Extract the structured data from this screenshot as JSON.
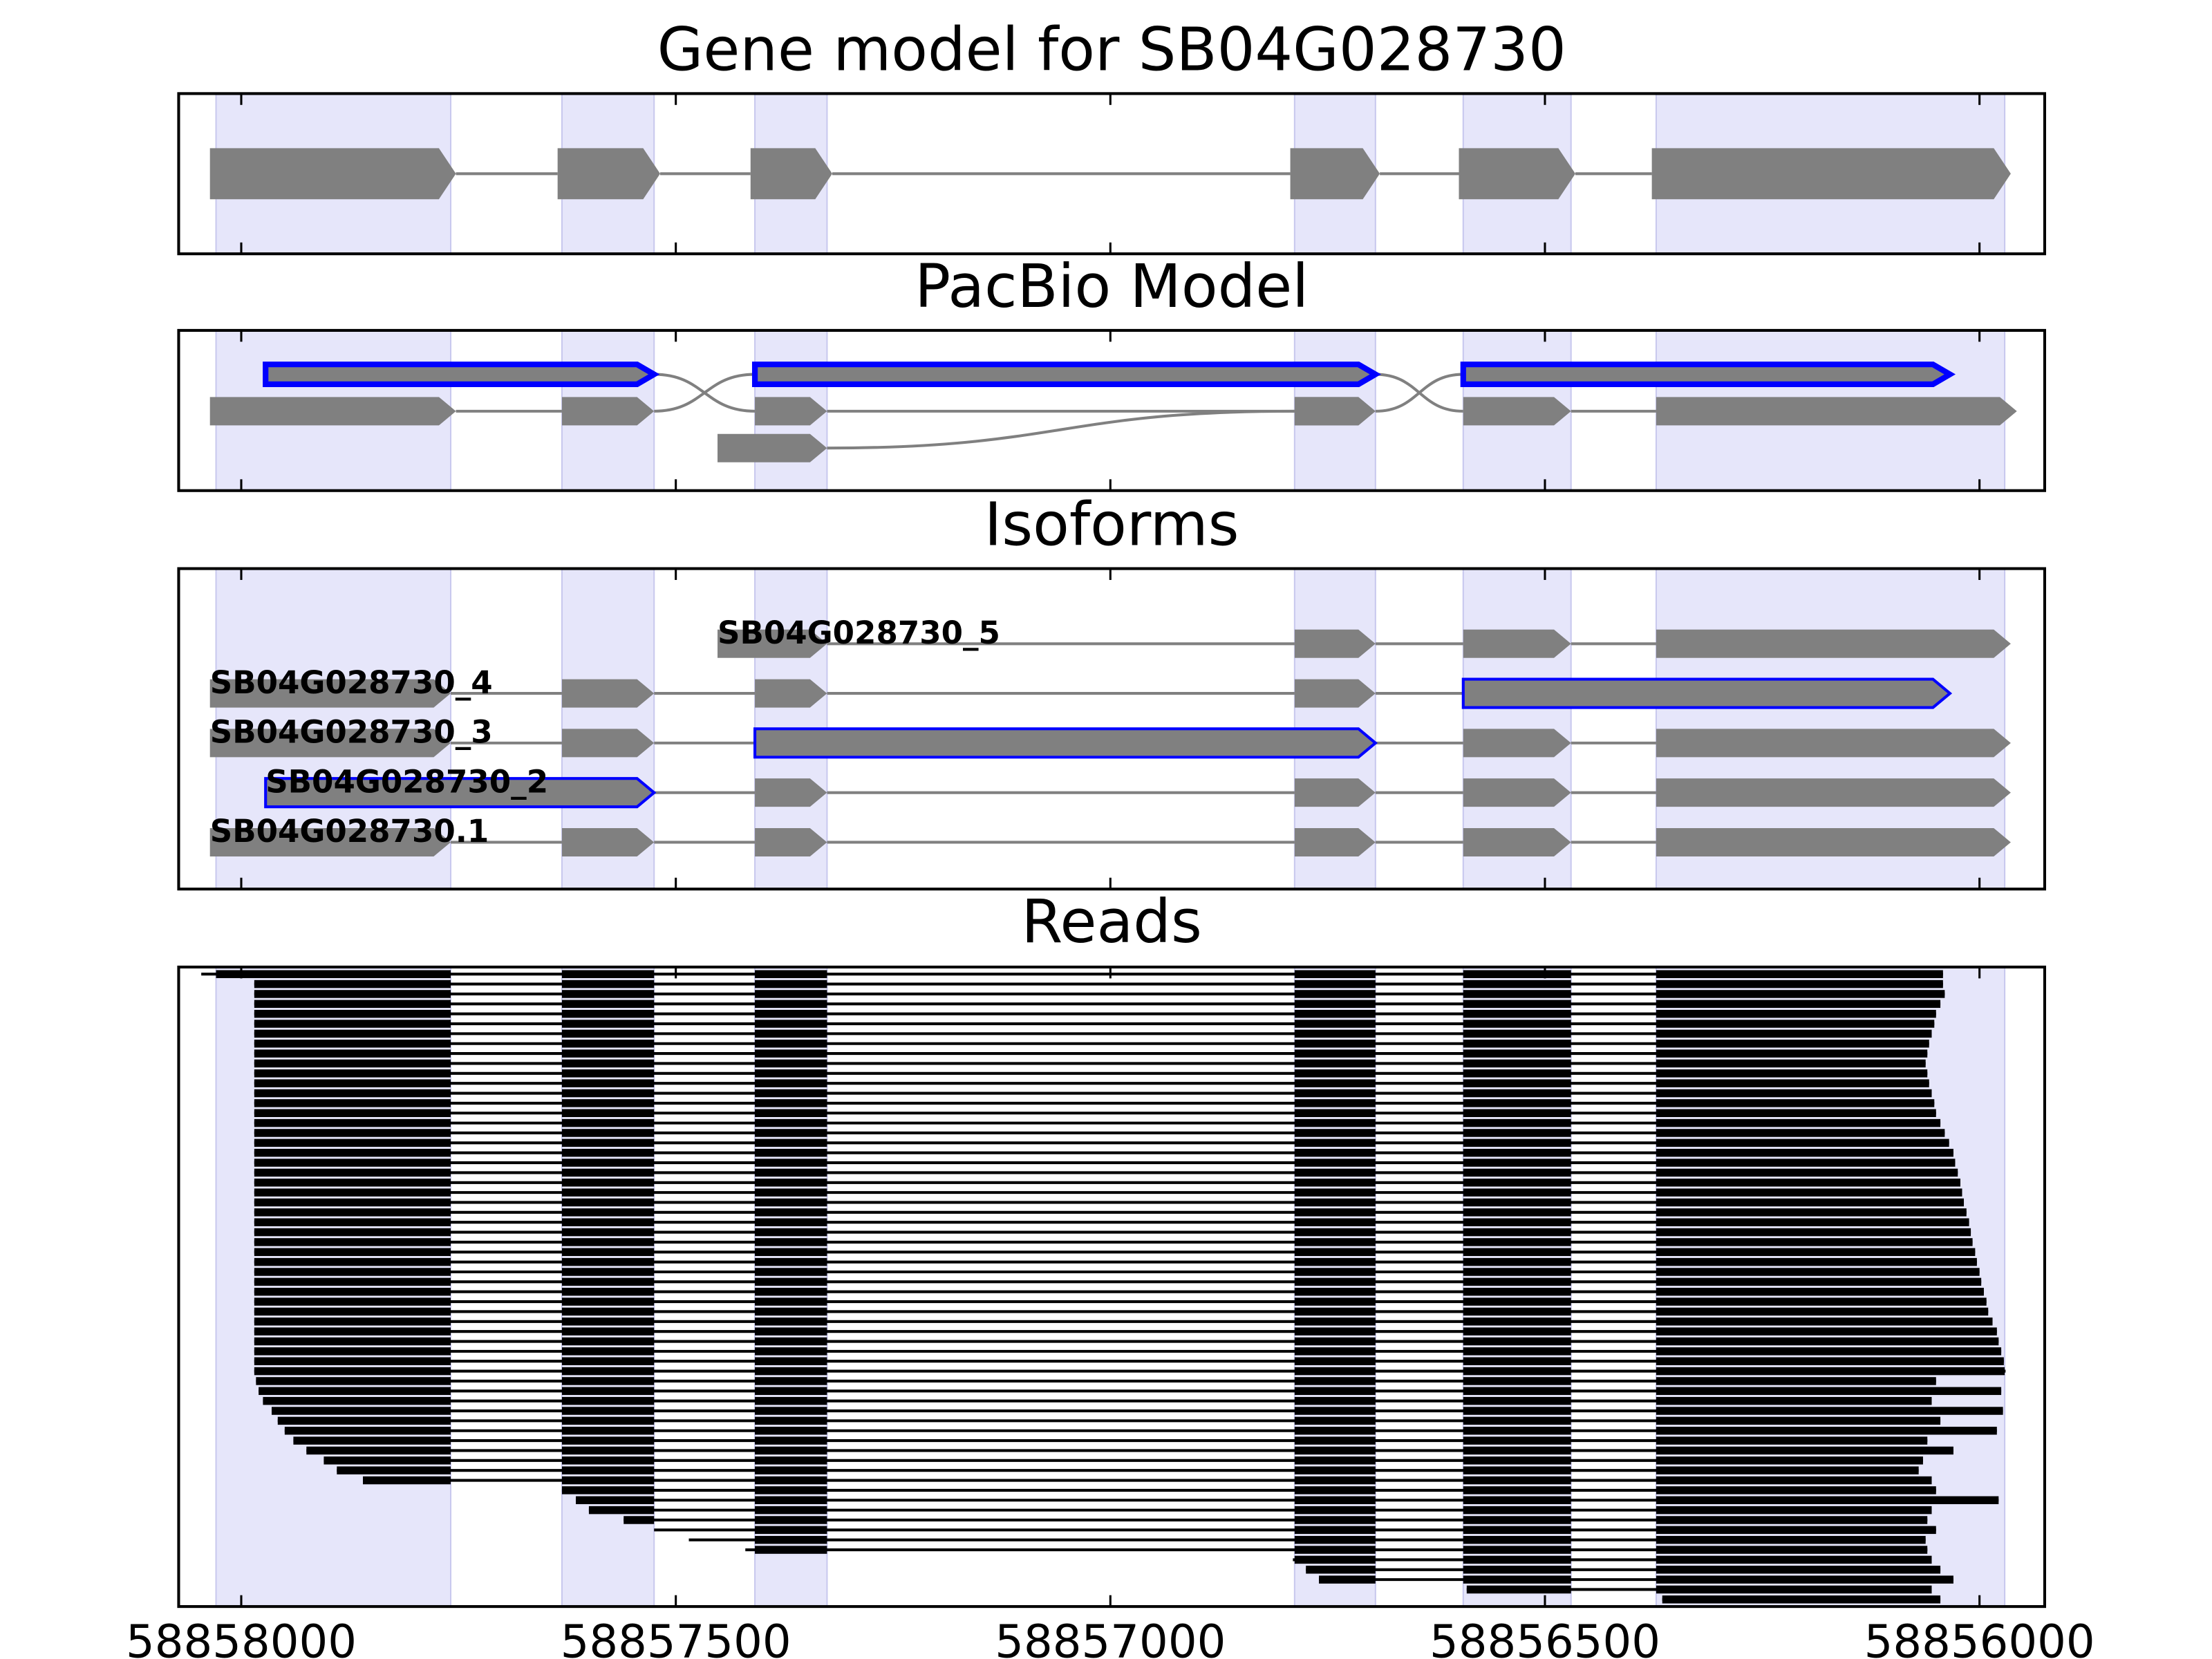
{
  "chart_data": [
    {
      "type": "gene",
      "title": "Gene model for SB04G028730",
      "xlim": [
        58858072,
        58855925
      ],
      "xticks": [
        58858000,
        58857500,
        58857000,
        58856500,
        58856000
      ],
      "region_color": "#e6e6fa",
      "exon_color": "#808080",
      "regions": [
        [
          58858029,
          58857759
        ],
        [
          58857631,
          58857525
        ],
        [
          58857409,
          58857326
        ],
        [
          58856788,
          58856695
        ],
        [
          58856594,
          58856470
        ],
        [
          58856372,
          58855971
        ]
      ],
      "exons": [
        [
          58858036,
          58857753
        ],
        [
          58857636,
          58857518
        ],
        [
          58857414,
          58857320
        ],
        [
          58856793,
          58856690
        ],
        [
          58856599,
          58856465
        ],
        [
          58856377,
          58855964
        ]
      ]
    },
    {
      "type": "pacbio",
      "title": "PacBio Model",
      "xlim": [
        58858072,
        58855925
      ],
      "xticks": [
        58858000,
        58857500,
        58857000,
        58856500,
        58856000
      ],
      "region_color": "#e6e6fa",
      "exon_color": "#808080",
      "highlight_color": "#0000ff",
      "regions": [
        [
          58858029,
          58857759
        ],
        [
          58857631,
          58857525
        ],
        [
          58857409,
          58857326
        ],
        [
          58856788,
          58856695
        ],
        [
          58856594,
          58856470
        ],
        [
          58856372,
          58855971
        ]
      ],
      "paths": [
        [
          {
            "start": 58857972,
            "end": 58857525,
            "row": 0,
            "outline": true
          },
          {
            "start": 58857409,
            "end": 58857326,
            "row": 1,
            "outline": false
          },
          {
            "start": 58856788,
            "end": 58856695,
            "row": 1,
            "outline": false
          },
          {
            "start": 58856594,
            "end": 58856034,
            "row": 0,
            "outline": true
          }
        ],
        [
          {
            "start": 58858036,
            "end": 58857753,
            "row": 1,
            "outline": false
          },
          {
            "start": 58857631,
            "end": 58857525,
            "row": 1,
            "outline": false
          },
          {
            "start": 58857409,
            "end": 58856695,
            "row": 0,
            "outline": true
          },
          {
            "start": 58856594,
            "end": 58856470,
            "row": 1,
            "outline": false
          },
          {
            "start": 58856372,
            "end": 58855957,
            "row": 1,
            "outline": false
          }
        ],
        [
          {
            "start": 58857452,
            "end": 58857326,
            "row": 2,
            "outline": false
          },
          {
            "start": 58856788,
            "end": 58856695,
            "row": 1,
            "outline": false
          }
        ]
      ]
    },
    {
      "type": "isoforms",
      "title": "Isoforms",
      "xlim": [
        58858072,
        58855925
      ],
      "xticks": [
        58858000,
        58857500,
        58857000,
        58856500,
        58856000
      ],
      "region_color": "#e6e6fa",
      "exon_color": "#808080",
      "highlight_color": "#0000ff",
      "regions": [
        [
          58858029,
          58857759
        ],
        [
          58857631,
          58857525
        ],
        [
          58857409,
          58857326
        ],
        [
          58856788,
          58856695
        ],
        [
          58856594,
          58856470
        ],
        [
          58856372,
          58855971
        ]
      ],
      "isoforms": [
        {
          "name": "SB04G028730_5",
          "exons": [
            [
              58857452,
              58857326
            ],
            [
              58856788,
              58856695
            ],
            [
              58856594,
              58856470
            ],
            [
              58856372,
              58855964
            ]
          ],
          "highlight": null
        },
        {
          "name": "SB04G028730_4",
          "exons": [
            [
              58858036,
              58857759
            ],
            [
              58857631,
              58857525
            ],
            [
              58857409,
              58857326
            ],
            [
              58856788,
              58856695
            ],
            [
              58856594,
              58856034
            ]
          ],
          "highlight": 4
        },
        {
          "name": "SB04G028730_3",
          "exons": [
            [
              58858036,
              58857759
            ],
            [
              58857631,
              58857525
            ],
            [
              58857409,
              58856695
            ],
            [
              58856594,
              58856470
            ],
            [
              58856372,
              58855964
            ]
          ],
          "highlight": 2
        },
        {
          "name": "SB04G028730_2",
          "exons": [
            [
              58857972,
              58857525
            ],
            [
              58857409,
              58857326
            ],
            [
              58856788,
              58856695
            ],
            [
              58856594,
              58856470
            ],
            [
              58856372,
              58855964
            ]
          ],
          "highlight": 0
        },
        {
          "name": "SB04G028730.1",
          "exons": [
            [
              58858036,
              58857759
            ],
            [
              58857631,
              58857525
            ],
            [
              58857409,
              58857326
            ],
            [
              58856788,
              58856695
            ],
            [
              58856594,
              58856470
            ],
            [
              58856372,
              58855964
            ]
          ],
          "highlight": null
        }
      ]
    },
    {
      "type": "reads",
      "title": "Reads",
      "xlim": [
        58858072,
        58855925
      ],
      "xticks": [
        58858000,
        58857500,
        58857000,
        58856500,
        58856000
      ],
      "region_color": "#e6e6fa",
      "read_color": "#000000",
      "regions": [
        [
          58858029,
          58857759
        ],
        [
          58857631,
          58857525
        ],
        [
          58857409,
          58857326
        ],
        [
          58856788,
          58856695
        ],
        [
          58856594,
          58856470
        ],
        [
          58856372,
          58855971
        ]
      ],
      "reads": [
        [
          58858046,
          58856042
        ],
        [
          58857985,
          58856042
        ],
        [
          58857985,
          58856040
        ],
        [
          58857985,
          58856045
        ],
        [
          58857985,
          58856050
        ],
        [
          58857985,
          58856052
        ],
        [
          58857985,
          58856055
        ],
        [
          58857985,
          58856058
        ],
        [
          58857985,
          58856060
        ],
        [
          58857985,
          58856062
        ],
        [
          58857985,
          58856060
        ],
        [
          58857985,
          58856058
        ],
        [
          58857985,
          58856055
        ],
        [
          58857985,
          58856052
        ],
        [
          58857985,
          58856050
        ],
        [
          58857985,
          58856045
        ],
        [
          58857985,
          58856040
        ],
        [
          58857985,
          58856035
        ],
        [
          58857985,
          58856030
        ],
        [
          58857985,
          58856028
        ],
        [
          58857985,
          58856025
        ],
        [
          58857985,
          58856022
        ],
        [
          58857985,
          58856020
        ],
        [
          58857985,
          58856018
        ],
        [
          58857985,
          58856015
        ],
        [
          58857985,
          58856012
        ],
        [
          58857985,
          58856010
        ],
        [
          58857985,
          58856008
        ],
        [
          58857985,
          58856005
        ],
        [
          58857985,
          58856003
        ],
        [
          58857985,
          58856000
        ],
        [
          58857985,
          58855998
        ],
        [
          58857985,
          58855995
        ],
        [
          58857985,
          58855992
        ],
        [
          58857985,
          58855990
        ],
        [
          58857985,
          58855985
        ],
        [
          58857985,
          58855980
        ],
        [
          58857985,
          58855978
        ],
        [
          58857985,
          58855975
        ],
        [
          58857985,
          58855972
        ],
        [
          58857985,
          58855970
        ],
        [
          58857983,
          58856050
        ],
        [
          58857980,
          58855975
        ],
        [
          58857975,
          58856055
        ],
        [
          58857965,
          58855973
        ],
        [
          58857958,
          58856045
        ],
        [
          58857950,
          58855980
        ],
        [
          58857940,
          58856060
        ],
        [
          58857925,
          58856030
        ],
        [
          58857905,
          58856065
        ],
        [
          58857890,
          58856070
        ],
        [
          58857860,
          58856055
        ],
        [
          58857631,
          58856050
        ],
        [
          58857615,
          58855978
        ],
        [
          58857600,
          58856055
        ],
        [
          58857560,
          58856060
        ],
        [
          58857525,
          58856050
        ],
        [
          58857485,
          58856062
        ],
        [
          58857420,
          58856060
        ],
        [
          58856790,
          58856055
        ],
        [
          58856775,
          58856045
        ],
        [
          58856760,
          58856030
        ],
        [
          58856590,
          58856055
        ],
        [
          58856365,
          58856045
        ]
      ]
    }
  ]
}
